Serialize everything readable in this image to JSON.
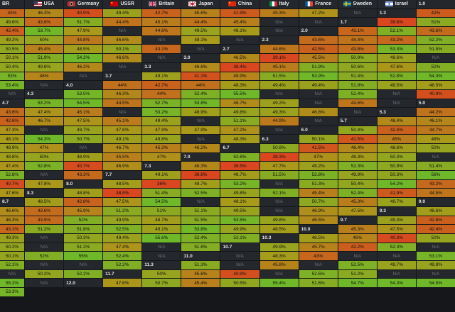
{
  "corner": "BR",
  "nations": [
    {
      "name": "USA",
      "flag": "usa-flag-icon"
    },
    {
      "name": "Germany",
      "flag": "germany-flag-icon"
    },
    {
      "name": "USSR",
      "flag": "ussr-flag-icon"
    },
    {
      "name": "Britain",
      "flag": "britain-flag-icon"
    },
    {
      "name": "Japan",
      "flag": "japan-flag-icon"
    },
    {
      "name": "China",
      "flag": "china-flag-icon"
    },
    {
      "name": "Italy",
      "flag": "italy-flag-icon"
    },
    {
      "name": "France",
      "flag": "france-flag-icon"
    },
    {
      "name": "Sweden",
      "flag": "sweden-flag-icon"
    },
    {
      "name": "Israel",
      "flag": "israel-flag-icon"
    }
  ],
  "colors": {
    "low": "#d9461f",
    "mid": "#a99a1a",
    "high": "#6fb829",
    "na": "#24272c"
  },
  "rows": [
    {
      "br": "1.0",
      "values": [
        "43%",
        "46.3%",
        "40.9%",
        "49.4%",
        "42.7%",
        "45.6%",
        "41.9%",
        "45.3%",
        "47.2%",
        "N/A"
      ]
    },
    {
      "br": "1.3",
      "values": [
        "42%",
        "49.6%",
        "43.6%",
        "51.7%",
        "44.4%",
        "45.1%",
        "44.4%",
        "45.4%",
        "N/A",
        "N/A"
      ]
    },
    {
      "br": "1.7",
      "values": [
        "39.6%",
        "51%",
        "42.4%",
        "53.7%",
        "47.9%",
        "N/A",
        "44.6%",
        "49.5%",
        "48.1%",
        "N/A"
      ]
    },
    {
      "br": "2.0",
      "values": [
        "43.1%",
        "52.1%",
        "43.6%",
        "49.2%",
        "50%",
        "44.8%",
        "46.6%",
        "N/A",
        "48.1%",
        "N/A"
      ]
    },
    {
      "br": "2.3",
      "values": [
        "43.6%",
        "44.4%",
        "43.2%",
        "52.2%",
        "50.5%",
        "45.4%",
        "48.5%",
        "50.1%",
        "43.1%",
        "N/A"
      ]
    },
    {
      "br": "2.7",
      "values": [
        "44.6%",
        "42.5%",
        "43.8%",
        "53.3%",
        "51.5%",
        "50.1%",
        "51.9%",
        "54.2%",
        "46.6%",
        "N/A"
      ]
    },
    {
      "br": "3.0",
      "values": [
        "46.5%",
        "39.1%",
        "45.5%",
        "50.9%",
        "49.6%",
        "N/A",
        "50.4%",
        "49.8%",
        "46.2%",
        "N/A"
      ]
    },
    {
      "br": "3.3",
      "values": [
        "46.6%",
        "38.4%",
        "45.1%",
        "51.9%",
        "50.6%",
        "47.6%",
        "52%",
        "53%",
        "46%",
        "N/A"
      ]
    },
    {
      "br": "3.7",
      "values": [
        "49.1%",
        "41.1%",
        "45.9%",
        "51.5%",
        "53.9%",
        "51.4%",
        "52.8%",
        "54.3%",
        "53.4%",
        "N/A"
      ]
    },
    {
      "br": "4.0",
      "values": [
        "44%",
        "42.7%",
        "44%",
        "48.3%",
        "49.4%",
        "49.4%",
        "51.9%",
        "49.5%",
        "48.5%",
        "N/A"
      ]
    },
    {
      "br": "4.3",
      "values": [
        "53.5%",
        "46.3%",
        "44%",
        "52.4%",
        "55.5%",
        "N/A",
        "N/A",
        "52.4%",
        "N/A",
        "40.9%"
      ]
    },
    {
      "br": "4.7",
      "values": [
        "53.2%",
        "54.5%",
        "44.5%",
        "52.7%",
        "53.8%",
        "46.7%",
        "49.2%",
        "N/A",
        "44.6%",
        "N/A"
      ]
    },
    {
      "br": "5.0",
      "values": [
        "43.6%",
        "47.4%",
        "45.1%",
        "N/A",
        "53.2%",
        "48.9%",
        "49.8%",
        "49.3%",
        "46.8%",
        "N/A"
      ]
    },
    {
      "br": "5.3",
      "values": [
        "44.2%",
        "42.6%",
        "46.7%",
        "47.5%",
        "45.1%",
        "49.4%",
        "N/A",
        "51.1%",
        "44.9%",
        "N/A"
      ]
    },
    {
      "br": "5.7",
      "values": [
        "46.4%",
        "46.1%",
        "47.3%",
        "N/A",
        "49.7%",
        "47.8%",
        "47.9%",
        "47.9%",
        "47.2%",
        "N/A"
      ]
    },
    {
      "br": "6.0",
      "values": [
        "50.4%",
        "42.4%",
        "44.7%",
        "48.1%",
        "54.3%",
        "50.7%",
        "49.1%",
        "49.8%",
        "N/A",
        "48.3%"
      ]
    },
    {
      "br": "6.3",
      "values": [
        "50.1%",
        "41.5%",
        "45%",
        "48%",
        "48.9%",
        "47%",
        "N/A",
        "46.7%",
        "45.3%",
        "46.2%"
      ]
    },
    {
      "br": "6.7",
      "values": [
        "50.9%",
        "41.5%",
        "46.4%",
        "48.6%",
        "50%",
        "48.8%",
        "50%",
        "48.9%",
        "45.5%",
        "47%"
      ]
    },
    {
      "br": "7.0",
      "values": [
        "52.6%",
        "38.3%",
        "47%",
        "48.3%",
        "50.3%",
        "N/A",
        "47.4%",
        "52.8%",
        "40.7%",
        "46.9%"
      ]
    },
    {
      "br": "7.3",
      "values": [
        "46.3%",
        "36.5%",
        "47.7%",
        "49.2%",
        "52.3%",
        "50.9%",
        "51.4%",
        "52.8%",
        "N/A",
        "43.3%"
      ]
    },
    {
      "br": "7.7",
      "values": [
        "49.1%",
        "36.8%",
        "48.7%",
        "51.5%",
        "52.8%",
        "49.9%",
        "50.3%",
        "56%",
        "40.7%",
        "47.8%"
      ]
    },
    {
      "br": "8.0",
      "values": [
        "48.5%",
        "36%",
        "48.7%",
        "53.2%",
        "N/A",
        "51.3%",
        "50.4%",
        "54.2%",
        "43.2%",
        "47.6%"
      ]
    },
    {
      "br": "8.3",
      "values": [
        "48.8%",
        "38.8%",
        "51.4%",
        "52.5%",
        "49.8%",
        "52.1%",
        "45.4%",
        "52.4%",
        "41.9%",
        "44.5%"
      ]
    },
    {
      "br": "8.7",
      "values": [
        "48.5%",
        "42.8%",
        "47.5%",
        "54.5%",
        "N/A",
        "48.1%",
        "N/A",
        "50.7%",
        "45.3%",
        "49.7%"
      ]
    },
    {
      "br": "9.0",
      "values": [
        "46.6%",
        "43.6%",
        "45.9%",
        "51.2%",
        "51%",
        "51.1%",
        "49.5%",
        "N/A",
        "46.9%",
        "47.5%"
      ]
    },
    {
      "br": "9.3",
      "values": [
        "48.6%",
        "46.3%",
        "43.5%",
        "52%",
        "49.9%",
        "48.7%",
        "51.5%",
        "53.5%",
        "49.8%",
        "46.5%"
      ]
    },
    {
      "br": "9.7",
      "values": [
        "49.3%",
        "42.6%",
        "43.1%",
        "51.2%",
        "51.8%",
        "52.5%",
        "49.1%",
        "53.8%",
        "49.9%",
        "48.5%"
      ]
    },
    {
      "br": "10.0",
      "values": [
        "45.3%",
        "47.5%",
        "42.4%",
        "49.3%",
        "N/A",
        "50.3%",
        "49.4%",
        "55.6%",
        "52.4%",
        "52.1%"
      ]
    },
    {
      "br": "10.3",
      "values": [
        "48.5%",
        "46%",
        "40.3%",
        "50%",
        "50.2%",
        "N/A",
        "51.2%",
        "47.4%",
        "N/A",
        "51.8%"
      ]
    },
    {
      "br": "10.7",
      "values": [
        "49.9%",
        "45.7%",
        "42.2%",
        "52.3%",
        "N/A",
        "50.1%",
        "52%",
        "55%",
        "52.4%",
        "N/A"
      ]
    },
    {
      "br": "11.0",
      "values": [
        "N/A",
        "48.3%",
        "43%",
        "N/A",
        "N/A",
        "53.1%",
        "52.1%",
        "N/A",
        "N/A",
        "52.2%"
      ]
    },
    {
      "br": "11.3",
      "values": [
        "51.3%",
        "N/A",
        "45.8%",
        "N/A",
        "52.5%",
        "49.7%",
        "49.8%",
        "N/A",
        "50.2%",
        "52.2%"
      ]
    },
    {
      "br": "11.7",
      "values": [
        "50%",
        "45.6%",
        "40.9%",
        "N/A",
        "52.5%",
        "51.2%",
        "N/A",
        "N/A",
        "55.2%",
        "N/A"
      ]
    },
    {
      "br": "12.0",
      "values": [
        "47.6%",
        "50.7%",
        "45.4%",
        "50.5%",
        "55.4%",
        "51.6%",
        "54.7%",
        "54.3%",
        "54.5%",
        "53.3%"
      ]
    }
  ]
}
